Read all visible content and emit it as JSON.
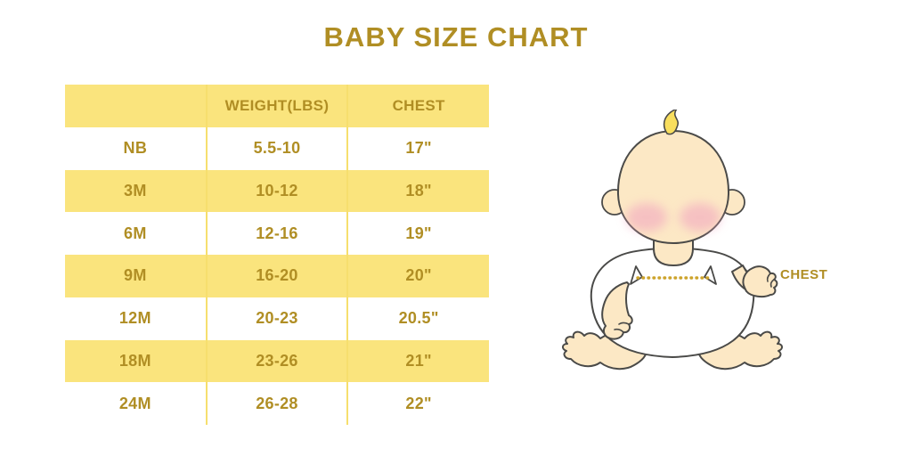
{
  "title": "BABY SIZE CHART",
  "colors": {
    "accent_gold": "#B08E24",
    "row_yellow": "#FAE47D",
    "divider_yellow": "#F6DF6E",
    "dot_gold": "#CDA32B",
    "baby_skin": "#FCE8C5",
    "baby_hair": "#F8DE5E",
    "cheek_pink": "#F2A7C0"
  },
  "chart_data": {
    "type": "table",
    "title": "BABY SIZE CHART",
    "columns": [
      "",
      "WEIGHT(LBS)",
      "CHEST"
    ],
    "rows": [
      [
        "NB",
        "5.5-10",
        "17\""
      ],
      [
        "3M",
        "10-12",
        "18\""
      ],
      [
        "6M",
        "12-16",
        "19\""
      ],
      [
        "9M",
        "16-20",
        "20\""
      ],
      [
        "12M",
        "20-23",
        "20.5\""
      ],
      [
        "18M",
        "23-26",
        "21\""
      ],
      [
        "24M",
        "26-28",
        "22\""
      ]
    ],
    "row_striping": "white/yellow alternating, header yellow",
    "legend_position": "none",
    "grid": "vertical yellow dividers only"
  },
  "illustration": {
    "description": "cartoon baby sitting, white onesie, dotted measurement line across chest",
    "chest_label": "CHEST"
  }
}
